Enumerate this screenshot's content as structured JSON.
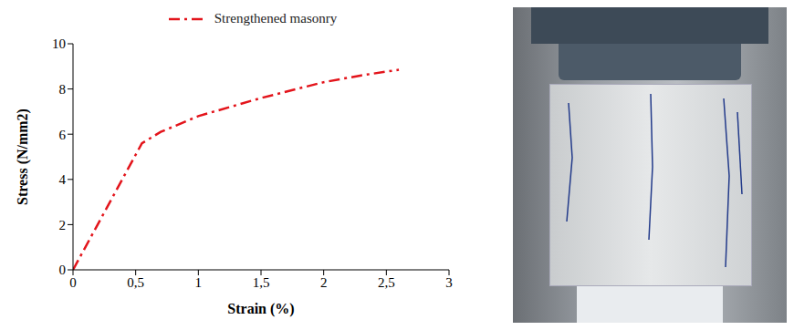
{
  "chart_data": {
    "type": "line",
    "x_label": "Strain (%)",
    "y_label": "Stress (N/mm2)",
    "series": [
      {
        "name": "Strengthened masonry",
        "color": "#e3141b",
        "line_style": "dashdot",
        "x": [
          0,
          0.55,
          0.7,
          1.0,
          1.5,
          2.0,
          2.3,
          2.6
        ],
        "values": [
          0,
          5.6,
          6.1,
          6.8,
          7.6,
          8.3,
          8.6,
          8.85
        ]
      }
    ],
    "xlim": [
      0,
      3
    ],
    "xticks": [
      0,
      {
        "value": 0.5,
        "label": "0,5"
      },
      1,
      {
        "value": 1.5,
        "label": "1,5"
      },
      2,
      {
        "value": 2.5,
        "label": "2,5"
      },
      3
    ],
    "ylim": [
      0,
      10
    ],
    "yticks": [
      0,
      2,
      4,
      6,
      8,
      10
    ],
    "grid": false,
    "legend": "top"
  }
}
